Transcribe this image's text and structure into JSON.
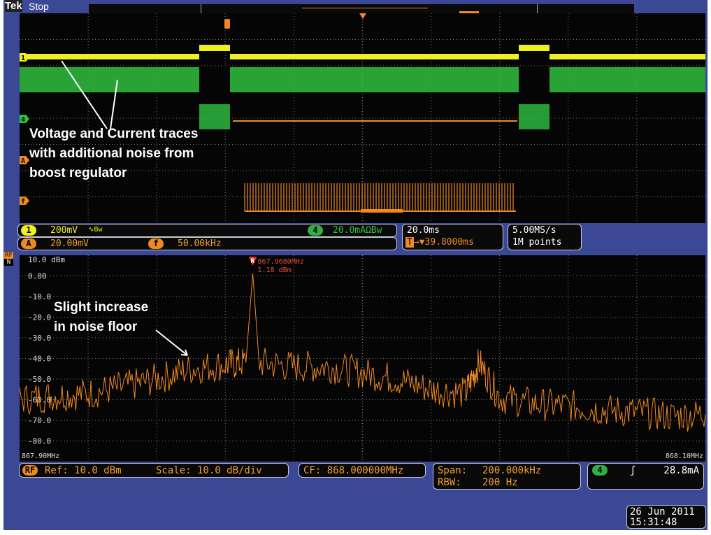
{
  "header": {
    "brand": "Tek",
    "state": "Stop"
  },
  "time_domain": {
    "channel_markers": [
      "1",
      "4",
      "A",
      "f"
    ],
    "annotation": [
      "Voltage and Current traces",
      "with additional noise from",
      "boost regulator"
    ],
    "trigger_marker": "T",
    "colors": {
      "ch1": "#f0f020",
      "ch4": "#30c040",
      "math": "#f08a20",
      "bus": "#f08a20"
    }
  },
  "readouts": {
    "ch1": {
      "badge": "1",
      "value": "200mV",
      "suffix": "∿Bw"
    },
    "ch4": {
      "badge": "4",
      "value": "20.0mAΩBw"
    },
    "math": {
      "badge": "A",
      "value": "20.00mV"
    },
    "bus": {
      "badge": "f",
      "value": "50.00kHz"
    },
    "timebase": {
      "scale": "20.0ms",
      "delay": "→▼39.8000ms",
      "delay_badge": "T"
    },
    "acq": {
      "rate": "5.00MS/s",
      "points": "1M points"
    }
  },
  "spectrum_footer": {
    "rf_badge": "RF",
    "ref": "Ref: 10.0 dBm",
    "scale": "Scale: 10.0 dB/div",
    "cf": "CF: 868.000000MHz",
    "span_label": "Span:",
    "span": "200.000kHz",
    "rbw_label": "RBW:",
    "rbw": "200 Hz",
    "trig_badge": "4",
    "trig_slope": "ʃ",
    "trig_level": "28.8mA"
  },
  "datetime": {
    "date": "26 Jun 2011",
    "time": "15:31:48"
  },
  "side_badge": [
    "RF",
    "N"
  ],
  "chart_data": {
    "type": "line",
    "title": "",
    "xlabel": "",
    "ylabel": "",
    "xlim": [
      867.9,
      868.1
    ],
    "ylim": [
      -90,
      10
    ],
    "x_tick_labels": [
      "867.90MHz",
      "868.10MHz"
    ],
    "y_tick_labels": [
      "10.0 dBm",
      "0.00",
      "-10.0",
      "-20.0",
      "-30.0",
      "-40.0",
      "-50.0",
      "-60.0",
      "-70.0",
      "-80.0"
    ],
    "grid": true,
    "marker": {
      "label": "R",
      "freq": "867.9680MHz",
      "level": "1.18 dBm",
      "x": 867.968,
      "y": 1.18
    },
    "annotation": [
      "Slight increase",
      "in noise floor"
    ],
    "series": [
      {
        "color": "#f08a20",
        "x": [
          867.9,
          867.91,
          867.92,
          867.93,
          867.94,
          867.95,
          867.96,
          867.966,
          867.968,
          867.97,
          867.98,
          867.99,
          868.0,
          868.01,
          868.02,
          868.03,
          868.034,
          868.04,
          868.05,
          868.06,
          868.07,
          868.08,
          868.09,
          868.1
        ],
        "y": [
          -60,
          -58,
          -57,
          -54,
          -50,
          -45,
          -43,
          -42,
          1.18,
          -42,
          -44,
          -44,
          -47,
          -50,
          -55,
          -57,
          -42,
          -59,
          -62,
          -63,
          -65,
          -66,
          -68,
          -67
        ]
      }
    ]
  }
}
